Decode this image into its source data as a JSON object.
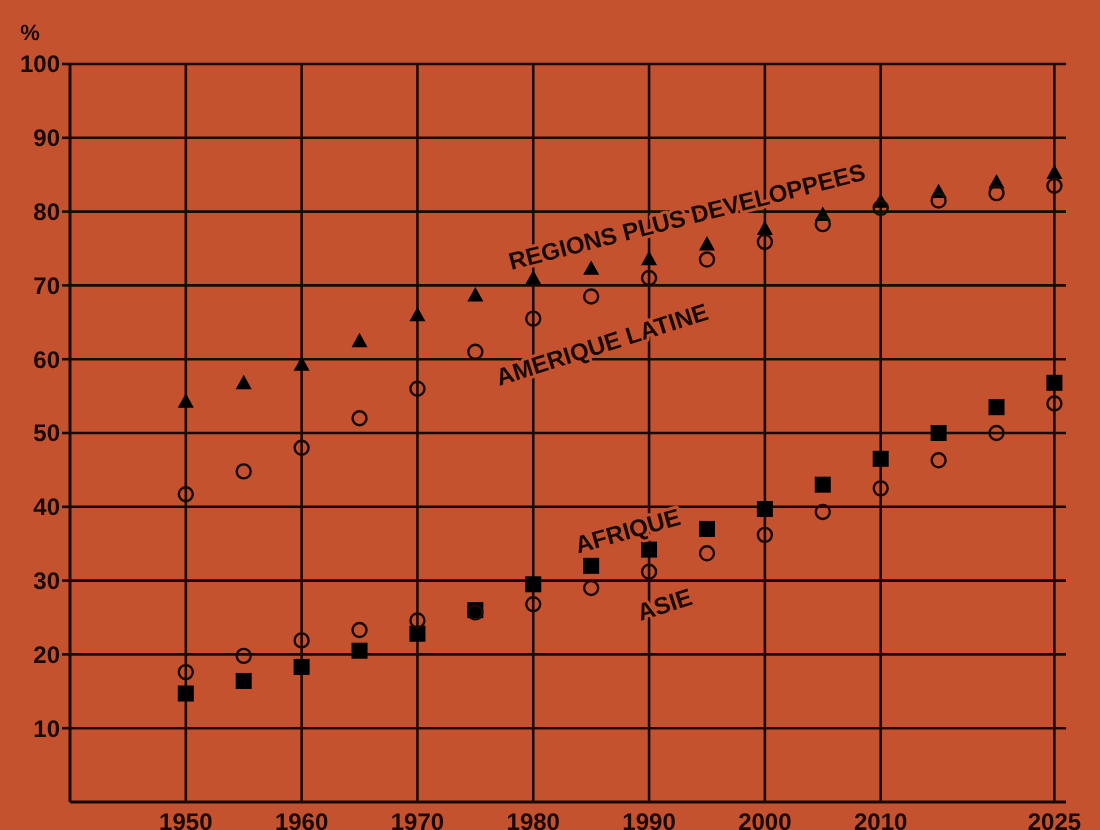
{
  "chart_data": {
    "type": "scatter",
    "ylabel": "%",
    "x": [
      1950,
      1955,
      1960,
      1965,
      1970,
      1975,
      1980,
      1985,
      1990,
      1995,
      2000,
      2005,
      2010,
      2015,
      2020,
      2025
    ],
    "series": [
      {
        "name": "REGIONS PLUS DEVELOPPEES",
        "color": "#000000",
        "marker": "triangle",
        "values": [
          54.3,
          56.8,
          59.3,
          62.5,
          66,
          68.7,
          71,
          72.3,
          73.6,
          75.6,
          77.7,
          79.6,
          81.4,
          82.7,
          84,
          85.3
        ]
      },
      {
        "name": "AMERIQUE LATINE",
        "color": "#1a0a05",
        "marker": "circle",
        "values": [
          41.7,
          44.8,
          48,
          52,
          56,
          61,
          65.5,
          68.5,
          71,
          73.5,
          75.9,
          78.3,
          80.5,
          81.5,
          82.5,
          83.5
        ]
      },
      {
        "name": "AFRIQUE",
        "color": "#000000",
        "marker": "square",
        "values": [
          14.7,
          16.4,
          18.3,
          20.5,
          22.8,
          26,
          29.5,
          32,
          34.2,
          37,
          39.7,
          43,
          46.5,
          50,
          53.5,
          56.8
        ]
      },
      {
        "name": "ASIE",
        "color": "#1a0a05",
        "marker": "circle",
        "values": [
          17.6,
          19.8,
          21.9,
          23.3,
          24.6,
          25.7,
          26.8,
          29,
          31.2,
          33.7,
          36.2,
          39.3,
          42.5,
          46.3,
          50,
          54
        ]
      }
    ],
    "xlim": [
      1940,
      2026
    ],
    "xticks": [
      1950,
      1960,
      1970,
      1980,
      1990,
      2000,
      2010,
      2025
    ],
    "ylim": [
      0,
      100
    ],
    "yticks": [
      10,
      20,
      30,
      40,
      50,
      60,
      70,
      80,
      90,
      100
    ],
    "grid": true
  }
}
